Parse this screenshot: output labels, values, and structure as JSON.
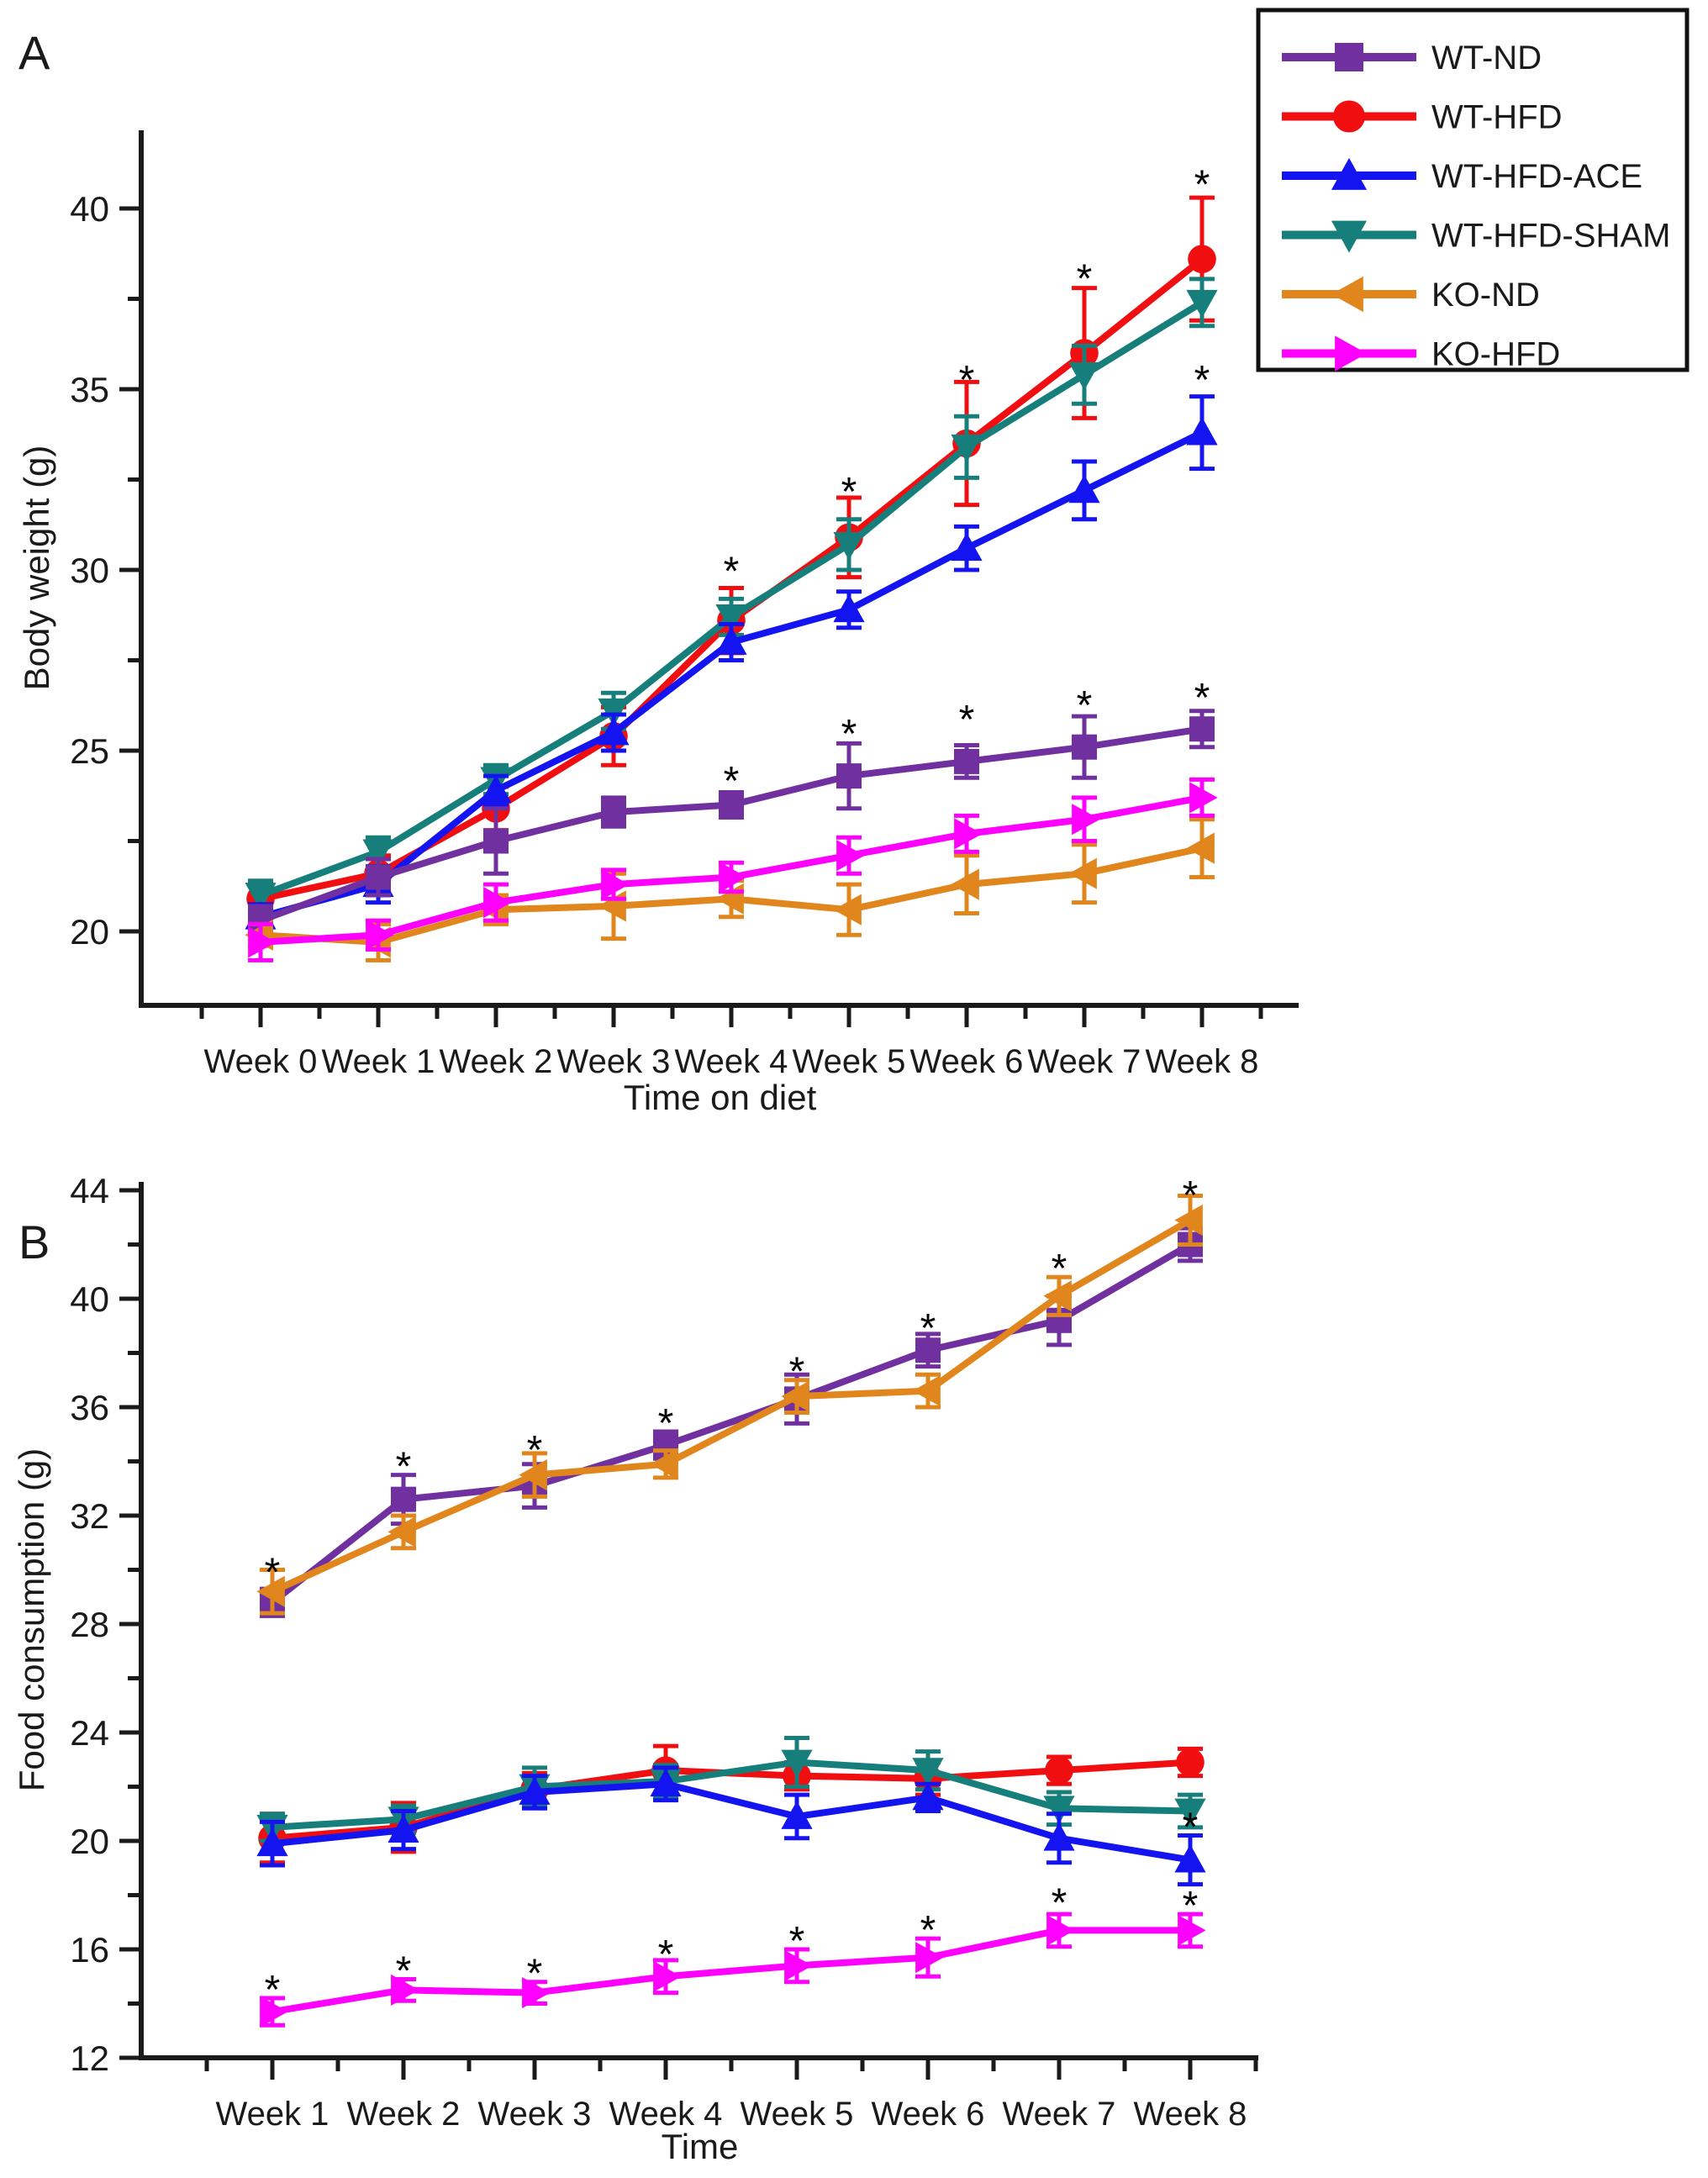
{
  "colors": {
    "background": "#ffffff",
    "axis": "#1a1a1a",
    "text": "#1a1a1a",
    "asterisk": "#000000",
    "legend_border": "#111111",
    "wt_nd": "#7030A0",
    "wt_hfd": "#F10E10",
    "wt_hfd_ace": "#1414F0",
    "wt_hfd_sham": "#177F7B",
    "ko_nd": "#E0861C",
    "ko_hfd": "#FF00FF"
  },
  "legend": {
    "items": [
      {
        "label": "WT-ND",
        "color": "#7030A0",
        "marker": "square"
      },
      {
        "label": "WT-HFD",
        "color": "#F10E10",
        "marker": "circle"
      },
      {
        "label": "WT-HFD-ACE",
        "color": "#1414F0",
        "marker": "triangle-up"
      },
      {
        "label": "WT-HFD-SHAM",
        "color": "#177F7B",
        "marker": "triangle-down"
      },
      {
        "label": "KO-ND",
        "color": "#E0861C",
        "marker": "triangle-left"
      },
      {
        "label": "KO-HFD",
        "color": "#FF00FF",
        "marker": "triangle-right"
      }
    ]
  },
  "chart_data": [
    {
      "id": "A",
      "type": "line",
      "panel_label": "A",
      "xlabel": "Time on diet",
      "ylabel": "Body weight (g)",
      "categories": [
        "Week 0",
        "Week 1",
        "Week 2",
        "Week 3",
        "Week 4",
        "Week 5",
        "Week 6",
        "Week 7",
        "Week 8"
      ],
      "ylim": [
        17.95,
        42.2
      ],
      "yticks_major": [
        20,
        25,
        30,
        35,
        40
      ],
      "yticks_minor": [
        22.5,
        27.5,
        32.5,
        37.5
      ],
      "grid": false,
      "legend_position": "outside-top-right",
      "series": [
        {
          "name": "WT-HFD",
          "color": "#F10E10",
          "marker": "circle",
          "values": [
            20.9,
            21.6,
            23.4,
            25.4,
            28.6,
            30.9,
            33.5,
            36.0,
            38.6
          ],
          "errors": [
            0.45,
            0.5,
            0.6,
            0.8,
            0.9,
            1.1,
            1.7,
            1.8,
            1.7
          ]
        },
        {
          "name": "WT-HFD-SHAM",
          "color": "#177F7B",
          "marker": "triangle-down",
          "values": [
            21.0,
            22.2,
            24.2,
            26.1,
            28.7,
            30.7,
            33.4,
            35.4,
            37.4
          ],
          "errors": [
            0.4,
            0.4,
            0.4,
            0.5,
            0.5,
            0.7,
            0.85,
            0.8,
            0.65
          ]
        },
        {
          "name": "WT-HFD-ACE",
          "color": "#1414F0",
          "marker": "triangle-up",
          "values": [
            20.4,
            21.3,
            23.9,
            25.5,
            28.0,
            28.9,
            30.6,
            32.2,
            33.8
          ],
          "errors": [
            0.35,
            0.5,
            0.4,
            0.5,
            0.5,
            0.5,
            0.6,
            0.8,
            1.0
          ]
        },
        {
          "name": "WT-ND",
          "color": "#7030A0",
          "marker": "square",
          "values": [
            20.3,
            21.5,
            22.5,
            23.3,
            23.5,
            24.3,
            24.7,
            25.1,
            25.6
          ],
          "errors": [
            0.4,
            0.5,
            0.9,
            0.4,
            0.35,
            0.9,
            0.45,
            0.85,
            0.5
          ]
        },
        {
          "name": "KO-ND",
          "color": "#E0861C",
          "marker": "triangle-left",
          "values": [
            19.9,
            19.7,
            20.6,
            20.7,
            20.9,
            20.6,
            21.3,
            21.6,
            22.3
          ],
          "errors": [
            0.3,
            0.5,
            0.4,
            0.9,
            0.5,
            0.7,
            0.8,
            0.8,
            0.8
          ]
        },
        {
          "name": "KO-HFD",
          "color": "#FF00FF",
          "marker": "triangle-right",
          "values": [
            19.7,
            19.9,
            20.8,
            21.3,
            21.5,
            22.1,
            22.7,
            23.1,
            23.7
          ],
          "errors": [
            0.5,
            0.4,
            0.5,
            0.4,
            0.4,
            0.5,
            0.5,
            0.6,
            0.5
          ]
        }
      ],
      "asterisks": [
        {
          "week": 4,
          "y": 30.1
        },
        {
          "week": 5,
          "y": 32.3
        },
        {
          "week": 6,
          "y": 35.4
        },
        {
          "week": 7,
          "y": 38.2
        },
        {
          "week": 8,
          "y": 40.8
        },
        {
          "week": 4,
          "y": 24.3
        },
        {
          "week": 5,
          "y": 25.6
        },
        {
          "week": 6,
          "y": 26.0
        },
        {
          "week": 7,
          "y": 26.4
        },
        {
          "week": 8,
          "y": 26.6
        },
        {
          "week": 8,
          "y": 35.4
        }
      ]
    },
    {
      "id": "B",
      "type": "line",
      "panel_label": "B",
      "xlabel": "Time",
      "ylabel": "Food consumption (g)",
      "categories": [
        "Week 1",
        "Week 2",
        "Week 3",
        "Week 4",
        "Week 5",
        "Week 6",
        "Week 7",
        "Week 8"
      ],
      "ylim": [
        12,
        44.3
      ],
      "yticks_major": [
        12,
        16,
        20,
        24,
        28,
        32,
        36,
        40,
        44
      ],
      "yticks_minor": [
        14,
        18,
        22,
        26,
        30,
        34,
        38,
        42
      ],
      "grid": false,
      "legend_position": "none",
      "series": [
        {
          "name": "WT-HFD",
          "color": "#F10E10",
          "marker": "circle",
          "values": [
            20.1,
            20.5,
            21.9,
            22.6,
            22.4,
            22.3,
            22.6,
            22.9
          ],
          "errors": [
            0.9,
            0.9,
            0.6,
            0.9,
            0.5,
            0.6,
            0.5,
            0.5
          ]
        },
        {
          "name": "WT-HFD-SHAM",
          "color": "#177F7B",
          "marker": "triangle-down",
          "values": [
            20.5,
            20.8,
            22.0,
            22.2,
            22.9,
            22.6,
            21.2,
            21.1
          ],
          "errors": [
            0.5,
            0.5,
            0.7,
            0.6,
            0.9,
            0.7,
            0.6,
            0.6
          ]
        },
        {
          "name": "WT-HFD-ACE",
          "color": "#1414F0",
          "marker": "triangle-up",
          "values": [
            19.9,
            20.4,
            21.8,
            22.1,
            20.9,
            21.6,
            20.1,
            19.3
          ],
          "errors": [
            0.8,
            0.7,
            0.6,
            0.6,
            0.8,
            0.5,
            0.9,
            0.9
          ]
        },
        {
          "name": "WT-ND",
          "color": "#7030A0",
          "marker": "square",
          "values": [
            28.8,
            32.6,
            33.1,
            34.6,
            36.3,
            38.1,
            39.2,
            42.0
          ],
          "errors": [
            0.5,
            0.9,
            0.8,
            0.5,
            0.9,
            0.6,
            0.9,
            0.6
          ]
        },
        {
          "name": "KO-ND",
          "color": "#E0861C",
          "marker": "triangle-left",
          "values": [
            29.2,
            31.4,
            33.5,
            33.9,
            36.4,
            36.6,
            40.1,
            42.9
          ],
          "errors": [
            0.8,
            0.6,
            0.8,
            0.5,
            0.6,
            0.6,
            0.7,
            0.9
          ]
        },
        {
          "name": "KO-HFD",
          "color": "#FF00FF",
          "marker": "triangle-right",
          "values": [
            13.7,
            14.5,
            14.4,
            15.0,
            15.4,
            15.7,
            16.7,
            16.7
          ],
          "errors": [
            0.5,
            0.4,
            0.4,
            0.6,
            0.6,
            0.7,
            0.6,
            0.6
          ]
        }
      ],
      "asterisks": [
        {
          "week": 0,
          "y": 30.1
        },
        {
          "week": 1,
          "y": 34.0
        },
        {
          "week": 2,
          "y": 34.6
        },
        {
          "week": 3,
          "y": 35.6
        },
        {
          "week": 4,
          "y": 37.5
        },
        {
          "week": 5,
          "y": 39.1
        },
        {
          "week": 6,
          "y": 41.3
        },
        {
          "week": 7,
          "y": 44.0
        },
        {
          "week": 7,
          "y": 20.7
        },
        {
          "week": 0,
          "y": 14.7
        },
        {
          "week": 1,
          "y": 15.4
        },
        {
          "week": 2,
          "y": 15.3
        },
        {
          "week": 3,
          "y": 16.0
        },
        {
          "week": 4,
          "y": 16.5
        },
        {
          "week": 5,
          "y": 16.9
        },
        {
          "week": 6,
          "y": 17.9
        },
        {
          "week": 7,
          "y": 17.8
        }
      ]
    }
  ]
}
